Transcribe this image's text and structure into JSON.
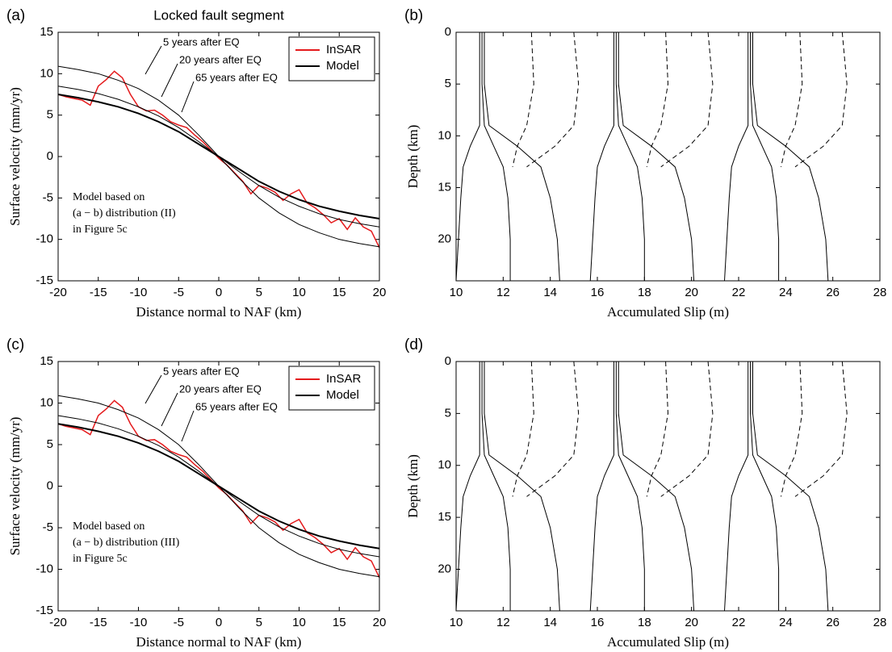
{
  "chart_data": [
    {
      "type": "line",
      "panel_label": "(a)",
      "title": "Locked fault segment",
      "xlabel": "Distance normal to NAF (km)",
      "ylabel": "Surface velocity (mm/yr)",
      "xlim": [
        -20,
        20
      ],
      "ylim": [
        -15,
        15
      ],
      "xticks": [
        -20,
        -15,
        -10,
        -5,
        0,
        5,
        10,
        15,
        20
      ],
      "yticks": [
        -15,
        -10,
        -5,
        0,
        5,
        10,
        15
      ],
      "annotations": [
        "5 years after EQ",
        "20 years after EQ",
        "65 years after EQ"
      ],
      "note": [
        "Model based on",
        "(a − b) distribution (II)",
        "in Figure 5c"
      ],
      "legend": "upper right",
      "series": [
        {
          "name": "InSAR",
          "color": "#e41a1c",
          "x": [
            -20,
            -19,
            -18,
            -17,
            -16,
            -15,
            -14,
            -13,
            -12,
            -11,
            -10,
            -9,
            -8,
            -7,
            -6,
            -5,
            -4,
            -3,
            -2,
            -1,
            0,
            1,
            2,
            3,
            4,
            5,
            6,
            7,
            8,
            9,
            10,
            11,
            12,
            13,
            14,
            15,
            16,
            17,
            18,
            19,
            20
          ],
          "values": [
            7.5,
            7.2,
            7.0,
            6.8,
            6.2,
            8.5,
            9.3,
            10.3,
            9.5,
            7.5,
            6.0,
            5.5,
            5.6,
            5.0,
            4.2,
            3.8,
            3.5,
            2.6,
            1.8,
            0.8,
            -0.2,
            -1.0,
            -2.0,
            -3.0,
            -4.5,
            -3.5,
            -3.8,
            -4.3,
            -5.3,
            -4.5,
            -4.0,
            -5.6,
            -6.2,
            -7.0,
            -8.0,
            -7.5,
            -8.8,
            -7.4,
            -8.5,
            -9.0,
            -11.0
          ]
        },
        {
          "name": "Model",
          "color": "#000000",
          "x": [
            -20,
            -17.5,
            -15,
            -12.5,
            -10,
            -7.5,
            -5,
            -2.5,
            0,
            2.5,
            5,
            7.5,
            10,
            12.5,
            15,
            17.5,
            20
          ],
          "values": [
            10.9,
            10.5,
            10.0,
            9.2,
            8.2,
            6.8,
            5.0,
            2.6,
            0,
            -2.6,
            -5.0,
            -6.8,
            -8.2,
            -9.2,
            -10.0,
            -10.5,
            -10.9
          ]
        },
        {
          "color": "#000000",
          "x": [
            -20,
            -17.5,
            -15,
            -12.5,
            -10,
            -7.5,
            -5,
            -2.5,
            0,
            2.5,
            5,
            7.5,
            10,
            12.5,
            15,
            17.5,
            20
          ],
          "values": [
            8.5,
            8.1,
            7.6,
            6.9,
            6.0,
            4.9,
            3.5,
            1.8,
            0,
            -1.8,
            -3.5,
            -4.9,
            -6.0,
            -6.9,
            -7.6,
            -8.1,
            -8.5
          ]
        },
        {
          "color": "#000000",
          "x": [
            -20,
            -17.5,
            -15,
            -12.5,
            -10,
            -7.5,
            -5,
            -2.5,
            0,
            2.5,
            5,
            7.5,
            10,
            12.5,
            15,
            17.5,
            20
          ],
          "values": [
            7.5,
            7.1,
            6.6,
            6.0,
            5.2,
            4.2,
            3.0,
            1.5,
            0,
            -1.5,
            -3.0,
            -4.2,
            -5.2,
            -6.0,
            -6.6,
            -7.1,
            -7.5
          ]
        }
      ]
    },
    {
      "type": "profile",
      "panel_label": "(b)",
      "xlabel": "Accumulated Slip (m)",
      "ylabel": "Depth (km)",
      "xlim": [
        10,
        28
      ],
      "ylim": [
        0,
        24
      ],
      "reversed": true,
      "xticks": [
        10,
        12,
        14,
        16,
        18,
        20,
        22,
        24,
        26,
        28
      ],
      "yticks": [
        0,
        5,
        10,
        15,
        20
      ],
      "depths": [
        0,
        5,
        9,
        11,
        13,
        16,
        20,
        24
      ],
      "series": [
        {
          "color": "#000000",
          "dash": false,
          "values": [
            11.0,
            11.0,
            11.0,
            10.6,
            10.3,
            10.2,
            10.1,
            10.0
          ]
        },
        {
          "color": "#000000",
          "dash": false,
          "values": [
            11.1,
            11.1,
            11.2,
            11.6,
            12.0,
            12.2,
            12.3,
            12.3
          ]
        },
        {
          "color": "#000000",
          "dash": false,
          "values": [
            11.2,
            11.2,
            11.4,
            12.6,
            13.6,
            14.0,
            14.3,
            14.4
          ]
        },
        {
          "color": "#000000",
          "dash": true,
          "values": [
            13.2,
            13.3,
            13.0,
            12.6,
            12.4,
            null,
            null,
            null
          ]
        },
        {
          "color": "#000000",
          "dash": true,
          "values": [
            15.0,
            15.2,
            15.0,
            14.2,
            13.0,
            null,
            null,
            null
          ]
        },
        {
          "color": "#000000",
          "dash": false,
          "values": [
            16.7,
            16.7,
            16.7,
            16.3,
            16.0,
            15.9,
            15.8,
            15.7
          ]
        },
        {
          "color": "#000000",
          "dash": false,
          "values": [
            16.8,
            16.8,
            16.9,
            17.3,
            17.7,
            17.9,
            18.0,
            18.0
          ]
        },
        {
          "color": "#000000",
          "dash": false,
          "values": [
            16.9,
            16.9,
            17.1,
            18.3,
            19.3,
            19.7,
            20.0,
            20.1
          ]
        },
        {
          "color": "#000000",
          "dash": true,
          "values": [
            18.9,
            19.0,
            18.7,
            18.3,
            18.1,
            null,
            null,
            null
          ]
        },
        {
          "color": "#000000",
          "dash": true,
          "values": [
            20.7,
            20.9,
            20.7,
            19.9,
            18.7,
            null,
            null,
            null
          ]
        },
        {
          "color": "#000000",
          "dash": false,
          "values": [
            22.4,
            22.4,
            22.4,
            22.0,
            21.7,
            21.6,
            21.5,
            21.4
          ]
        },
        {
          "color": "#000000",
          "dash": false,
          "values": [
            22.5,
            22.5,
            22.6,
            23.0,
            23.4,
            23.6,
            23.7,
            23.7
          ]
        },
        {
          "color": "#000000",
          "dash": false,
          "values": [
            22.6,
            22.6,
            22.8,
            24.0,
            25.0,
            25.4,
            25.7,
            25.8
          ]
        },
        {
          "color": "#000000",
          "dash": true,
          "values": [
            24.6,
            24.7,
            24.4,
            24.0,
            23.8,
            null,
            null,
            null
          ]
        },
        {
          "color": "#000000",
          "dash": true,
          "values": [
            26.4,
            26.6,
            26.4,
            25.6,
            24.4,
            null,
            null,
            null
          ]
        }
      ]
    },
    {
      "type": "line",
      "panel_label": "(c)",
      "xlabel": "Distance normal to NAF (km)",
      "ylabel": "Surface velocity (mm/yr)",
      "xlim": [
        -20,
        20
      ],
      "ylim": [
        -15,
        15
      ],
      "xticks": [
        -20,
        -15,
        -10,
        -5,
        0,
        5,
        10,
        15,
        20
      ],
      "yticks": [
        -15,
        -10,
        -5,
        0,
        5,
        10,
        15
      ],
      "annotations": [
        "5 years after EQ",
        "20 years after EQ",
        "65 years after EQ"
      ],
      "note": [
        "Model based on",
        "(a − b) distribution (III)",
        "in Figure 5c"
      ],
      "legend": "upper right",
      "series": [
        {
          "name": "InSAR",
          "color": "#e41a1c",
          "x": [
            -20,
            -19,
            -18,
            -17,
            -16,
            -15,
            -14,
            -13,
            -12,
            -11,
            -10,
            -9,
            -8,
            -7,
            -6,
            -5,
            -4,
            -3,
            -2,
            -1,
            0,
            1,
            2,
            3,
            4,
            5,
            6,
            7,
            8,
            9,
            10,
            11,
            12,
            13,
            14,
            15,
            16,
            17,
            18,
            19,
            20
          ],
          "values": [
            7.5,
            7.2,
            7.0,
            6.8,
            6.2,
            8.5,
            9.3,
            10.3,
            9.5,
            7.5,
            6.0,
            5.5,
            5.6,
            5.0,
            4.2,
            3.8,
            3.5,
            2.6,
            1.8,
            0.8,
            -0.2,
            -1.0,
            -2.0,
            -3.0,
            -4.5,
            -3.5,
            -3.8,
            -4.3,
            -5.3,
            -4.5,
            -4.0,
            -5.6,
            -6.2,
            -7.0,
            -8.0,
            -7.5,
            -8.8,
            -7.4,
            -8.5,
            -9.0,
            -11.0
          ]
        },
        {
          "name": "Model",
          "color": "#000000",
          "x": [
            -20,
            -17.5,
            -15,
            -12.5,
            -10,
            -7.5,
            -5,
            -2.5,
            0,
            2.5,
            5,
            7.5,
            10,
            12.5,
            15,
            17.5,
            20
          ],
          "values": [
            10.9,
            10.5,
            10.0,
            9.2,
            8.2,
            6.8,
            5.0,
            2.6,
            0,
            -2.6,
            -5.0,
            -6.8,
            -8.2,
            -9.2,
            -10.0,
            -10.5,
            -10.9
          ]
        },
        {
          "color": "#000000",
          "x": [
            -20,
            -17.5,
            -15,
            -12.5,
            -10,
            -7.5,
            -5,
            -2.5,
            0,
            2.5,
            5,
            7.5,
            10,
            12.5,
            15,
            17.5,
            20
          ],
          "values": [
            8.5,
            8.1,
            7.6,
            6.9,
            6.0,
            4.9,
            3.5,
            1.8,
            0,
            -1.8,
            -3.5,
            -4.9,
            -6.0,
            -6.9,
            -7.6,
            -8.1,
            -8.5
          ]
        },
        {
          "color": "#000000",
          "x": [
            -20,
            -17.5,
            -15,
            -12.5,
            -10,
            -7.5,
            -5,
            -2.5,
            0,
            2.5,
            5,
            7.5,
            10,
            12.5,
            15,
            17.5,
            20
          ],
          "values": [
            7.5,
            7.1,
            6.6,
            6.0,
            5.2,
            4.2,
            3.0,
            1.5,
            0,
            -1.5,
            -3.0,
            -4.2,
            -5.2,
            -6.0,
            -6.6,
            -7.1,
            -7.5
          ]
        }
      ]
    },
    {
      "type": "profile",
      "panel_label": "(d)",
      "xlabel": "Accumulated Slip (m)",
      "ylabel": "Depth (km)",
      "xlim": [
        10,
        28
      ],
      "ylim": [
        0,
        24
      ],
      "reversed": true,
      "xticks": [
        10,
        12,
        14,
        16,
        18,
        20,
        22,
        24,
        26,
        28
      ],
      "yticks": [
        0,
        5,
        10,
        15,
        20
      ],
      "depths": [
        0,
        5,
        9,
        11,
        13,
        16,
        20,
        24
      ],
      "series": [
        {
          "color": "#000000",
          "dash": false,
          "values": [
            11.0,
            11.0,
            11.0,
            10.6,
            10.3,
            10.2,
            10.1,
            10.0
          ]
        },
        {
          "color": "#000000",
          "dash": false,
          "values": [
            11.1,
            11.1,
            11.2,
            11.6,
            12.0,
            12.2,
            12.3,
            12.3
          ]
        },
        {
          "color": "#000000",
          "dash": false,
          "values": [
            11.2,
            11.2,
            11.4,
            12.6,
            13.6,
            14.0,
            14.3,
            14.4
          ]
        },
        {
          "color": "#000000",
          "dash": true,
          "values": [
            13.2,
            13.3,
            13.0,
            12.6,
            12.4,
            null,
            null,
            null
          ]
        },
        {
          "color": "#000000",
          "dash": true,
          "values": [
            15.0,
            15.2,
            15.0,
            14.2,
            13.0,
            null,
            null,
            null
          ]
        },
        {
          "color": "#000000",
          "dash": false,
          "values": [
            16.7,
            16.7,
            16.7,
            16.3,
            16.0,
            15.9,
            15.8,
            15.7
          ]
        },
        {
          "color": "#000000",
          "dash": false,
          "values": [
            16.8,
            16.8,
            16.9,
            17.3,
            17.7,
            17.9,
            18.0,
            18.0
          ]
        },
        {
          "color": "#000000",
          "dash": false,
          "values": [
            16.9,
            16.9,
            17.1,
            18.3,
            19.3,
            19.7,
            20.0,
            20.1
          ]
        },
        {
          "color": "#000000",
          "dash": true,
          "values": [
            18.9,
            19.0,
            18.7,
            18.3,
            18.1,
            null,
            null,
            null
          ]
        },
        {
          "color": "#000000",
          "dash": true,
          "values": [
            20.7,
            20.9,
            20.7,
            19.9,
            18.7,
            null,
            null,
            null
          ]
        },
        {
          "color": "#000000",
          "dash": false,
          "values": [
            22.4,
            22.4,
            22.4,
            22.0,
            21.7,
            21.6,
            21.5,
            21.4
          ]
        },
        {
          "color": "#000000",
          "dash": false,
          "values": [
            22.5,
            22.5,
            22.6,
            23.0,
            23.4,
            23.6,
            23.7,
            23.7
          ]
        },
        {
          "color": "#000000",
          "dash": false,
          "values": [
            22.6,
            22.6,
            22.8,
            24.0,
            25.0,
            25.4,
            25.7,
            25.8
          ]
        },
        {
          "color": "#000000",
          "dash": true,
          "values": [
            24.6,
            24.7,
            24.4,
            24.0,
            23.8,
            null,
            null,
            null
          ]
        },
        {
          "color": "#000000",
          "dash": true,
          "values": [
            26.4,
            26.6,
            26.4,
            25.6,
            24.4,
            null,
            null,
            null
          ]
        }
      ]
    }
  ]
}
